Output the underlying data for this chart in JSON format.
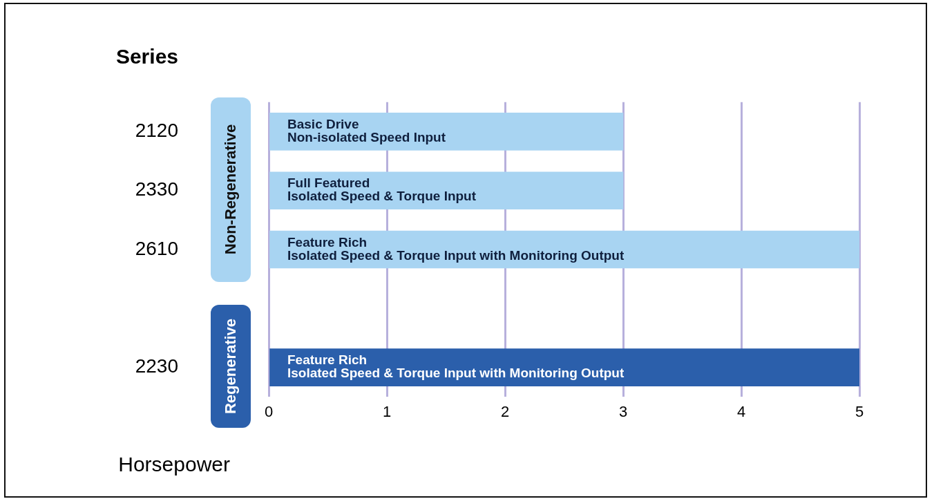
{
  "chart_data": {
    "type": "bar",
    "orientation": "horizontal",
    "ylabel": "Series",
    "xlabel": "Horsepower",
    "categories": [
      "2120",
      "2330",
      "2610",
      null,
      "2230"
    ],
    "values": [
      3,
      3,
      5,
      null,
      5
    ],
    "colors": [
      "#a8d4f2",
      "#a8d4f2",
      "#a8d4f2",
      "#a8d4f2",
      "#2b5fab"
    ],
    "xlim": [
      0,
      5
    ],
    "xticks": [
      0,
      1,
      2,
      3,
      4,
      5
    ],
    "grid": "x",
    "legend": false,
    "annotations": [
      "Basic Drive\nNon-isolated Speed Input",
      "Full Featured\nIsolated Speed & Torque Input",
      "Feature Rich\nIsolated Speed & Torque Input with Monitoring Output",
      "Feature Rich\nIsolated Speed & Torque Input with Monitoring Output",
      "Non-Regenerative",
      "Regenerative"
    ]
  }
}
